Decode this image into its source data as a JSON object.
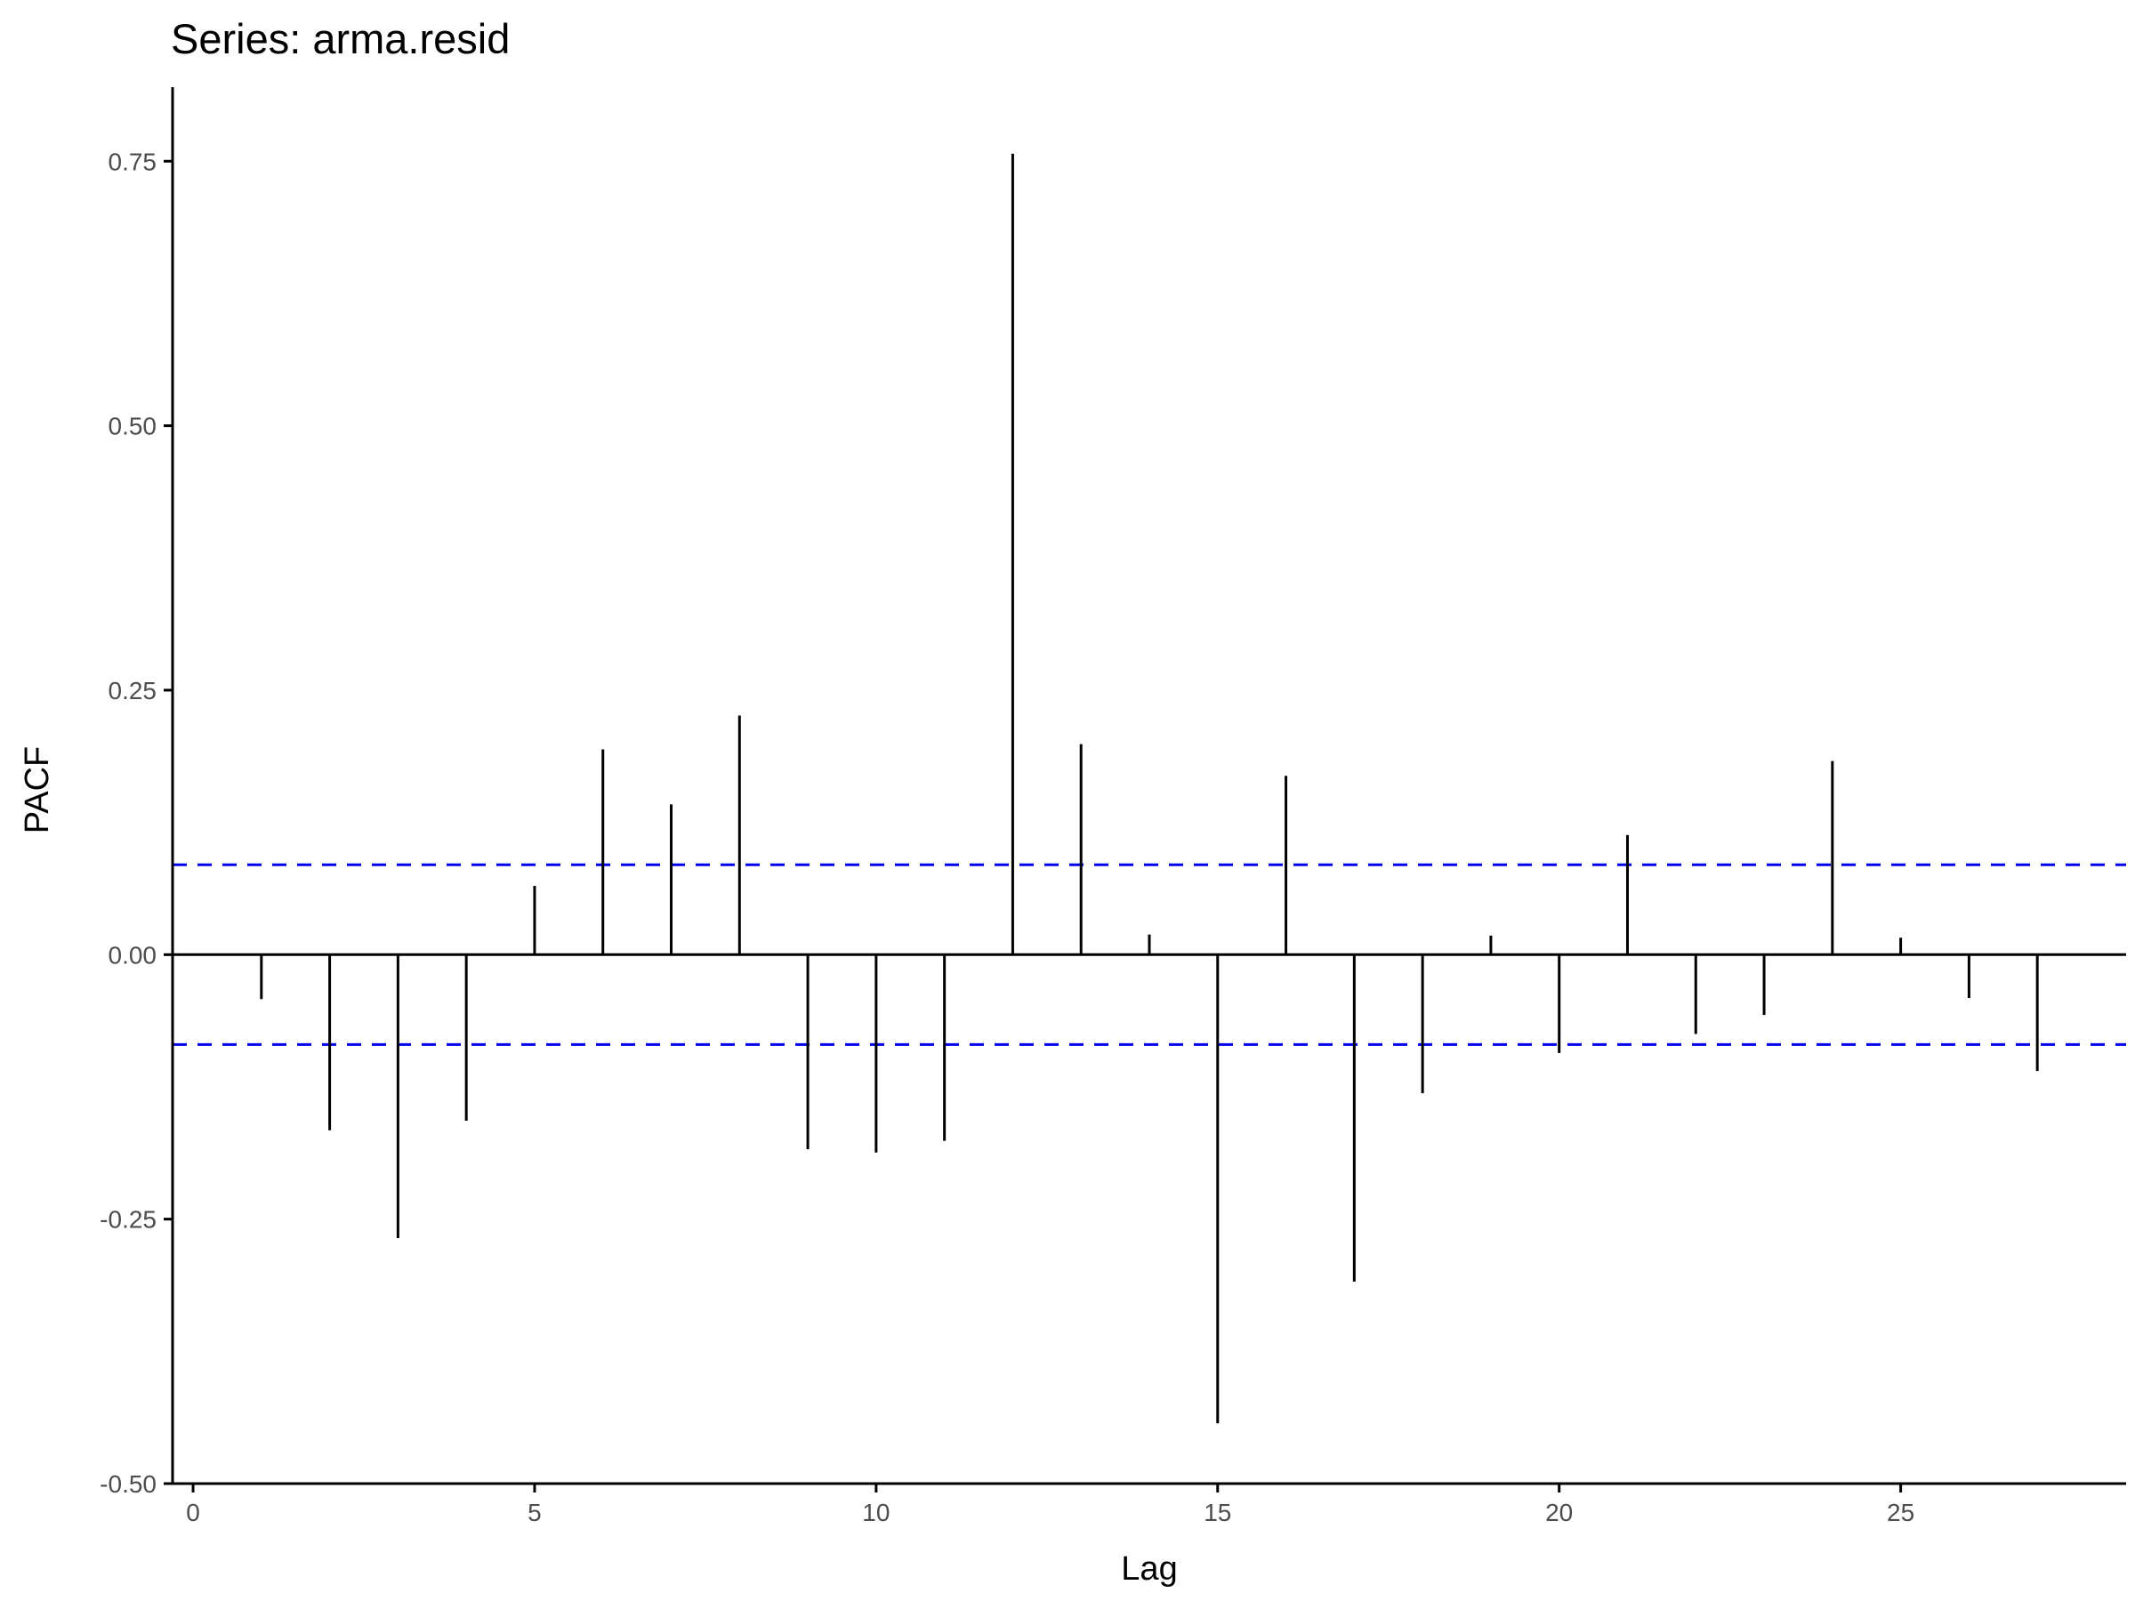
{
  "chart_data": {
    "type": "bar",
    "title": "Series: arma.resid",
    "xlabel": "Lag",
    "ylabel": "PACF",
    "xlim": [
      -0.3,
      28.3
    ],
    "ylim": [
      -0.5,
      0.82
    ],
    "x_ticks": [
      0,
      5,
      10,
      15,
      20,
      25
    ],
    "x_tick_labels": [
      "0",
      "5",
      "10",
      "15",
      "20",
      "25"
    ],
    "y_ticks": [
      -0.5,
      -0.25,
      0,
      0.25,
      0.5,
      0.75
    ],
    "y_tick_labels": [
      "-0.50",
      "-0.25",
      "0.00",
      "0.25",
      "0.50",
      "0.75"
    ],
    "grid": false,
    "lags": [
      1,
      2,
      3,
      4,
      5,
      6,
      7,
      8,
      9,
      10,
      11,
      12,
      13,
      14,
      15,
      16,
      17,
      18,
      19,
      20,
      21,
      22,
      23,
      24,
      25,
      26,
      27
    ],
    "values": [
      -0.042,
      -0.166,
      -0.268,
      -0.157,
      0.065,
      0.194,
      0.142,
      0.226,
      -0.184,
      -0.187,
      -0.176,
      0.757,
      0.199,
      0.019,
      -0.443,
      0.169,
      -0.309,
      -0.131,
      0.018,
      -0.093,
      0.113,
      -0.075,
      -0.057,
      0.183,
      0.016,
      -0.041,
      -0.11
    ],
    "confidence_bound": 0.085,
    "colors": {
      "bars": "#000000",
      "confidence_lines": "#0000ee",
      "axes": "#000000",
      "tick_labels": "#4d4d4d"
    }
  }
}
